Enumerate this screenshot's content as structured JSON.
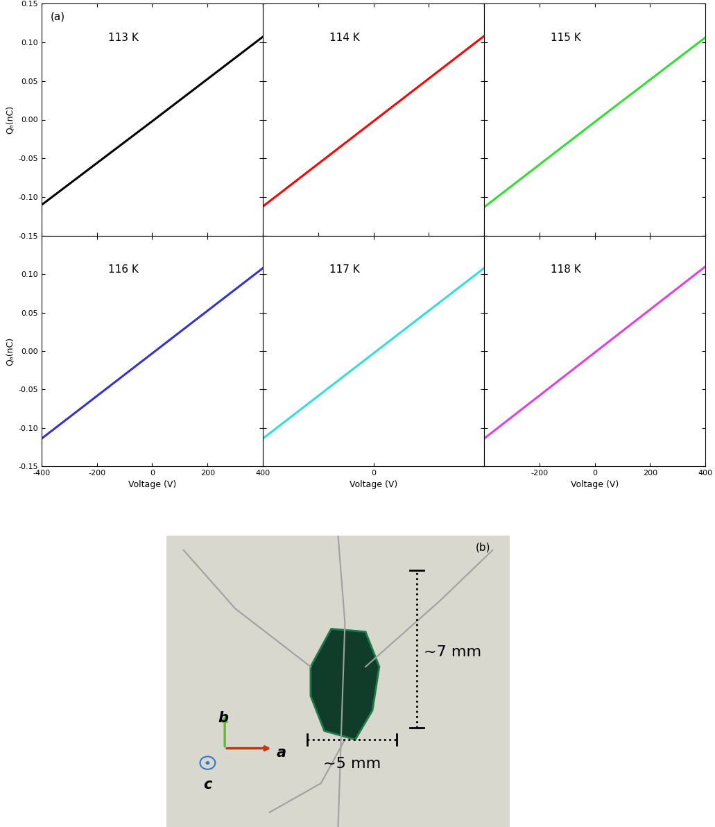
{
  "chart_data": [
    {
      "type": "line",
      "panel_label": "(a)",
      "label": "113 K",
      "ylabel": "Qₐ(nC)",
      "xlim": [
        -400,
        400
      ],
      "ylim": [
        -0.15,
        0.15
      ],
      "xticks": [
        -400,
        -200,
        0,
        200,
        400
      ],
      "yticks": [
        {
          "value": -0.15,
          "label": "-0.15"
        },
        {
          "value": -0.1,
          "label": "-0.10"
        },
        {
          "value": -0.05,
          "label": "-0.05"
        },
        {
          "value": 0,
          "label": "0.00"
        },
        {
          "value": 0.05,
          "label": "0.05"
        },
        {
          "value": 0.1,
          "label": "0.10"
        },
        {
          "value": 0.15,
          "label": "0.15"
        }
      ],
      "tick_labels": "y",
      "series": [
        {
          "x": [
            -400,
            0,
            400
          ],
          "values": [
            -0.11,
            -0.002,
            0.107
          ],
          "color": "#000000"
        }
      ]
    },
    {
      "type": "line",
      "label": "114 K",
      "xlim": [
        -400,
        400
      ],
      "ylim": [
        -0.15,
        0.15
      ],
      "xticks": [
        -400,
        -200,
        0,
        200,
        400
      ],
      "yticks": [
        -0.15,
        -0.1,
        -0.05,
        0,
        0.05,
        0.1,
        0.15
      ],
      "tick_labels": false,
      "series": [
        {
          "x": [
            -400,
            0,
            400
          ],
          "values": [
            -0.112,
            -0.002,
            0.108
          ],
          "color": "#ff0000"
        }
      ]
    },
    {
      "type": "line",
      "label": "115 K",
      "xlim": [
        -400,
        400
      ],
      "ylim": [
        -0.15,
        0.15
      ],
      "xticks": [
        -400,
        -200,
        0,
        200,
        400
      ],
      "yticks": [
        -0.15,
        -0.1,
        -0.05,
        0,
        0.05,
        0.1,
        0.15
      ],
      "tick_labels": false,
      "series": [
        {
          "x": [
            -400,
            0,
            400
          ],
          "values": [
            -0.113,
            -0.003,
            0.106
          ],
          "color": "#33dd33"
        }
      ]
    },
    {
      "type": "line",
      "label": "116 K",
      "xlabel": "Voltage (V)",
      "ylabel": "Qₐ(nC)",
      "xlim": [
        -400,
        400
      ],
      "ylim": [
        -0.15,
        0.15
      ],
      "xticks": [
        -400,
        -200,
        0,
        200,
        400
      ],
      "yticks": [
        {
          "value": -0.15,
          "label": "-0.15"
        },
        {
          "value": -0.1,
          "label": "-0.10"
        },
        {
          "value": -0.05,
          "label": "-0.05"
        },
        {
          "value": 0,
          "label": "0.00"
        },
        {
          "value": 0.05,
          "label": "0.05"
        },
        {
          "value": 0.1,
          "label": "0.10"
        }
      ],
      "tick_labels": true,
      "series": [
        {
          "x": [
            -400,
            0,
            400
          ],
          "values": [
            -0.114,
            -0.003,
            0.108
          ],
          "color": "#3333cc"
        }
      ]
    },
    {
      "type": "line",
      "label": "117 K",
      "xlabel": "Voltage (V)",
      "xlim": [
        -400,
        400
      ],
      "ylim": [
        -0.15,
        0.15
      ],
      "xticks": [
        0
      ],
      "yticks": [
        -0.15,
        -0.1,
        -0.05,
        0,
        0.05,
        0.1,
        0.15
      ],
      "tick_labels": "x",
      "series": [
        {
          "x": [
            -400,
            0,
            400
          ],
          "values": [
            -0.114,
            -0.003,
            0.108
          ],
          "color": "#33dddd"
        }
      ]
    },
    {
      "type": "line",
      "label": "118 K",
      "xlabel": "Voltage (V)",
      "xlim": [
        -400,
        400
      ],
      "ylim": [
        -0.15,
        0.15
      ],
      "xticks": [
        -200,
        0,
        200,
        400
      ],
      "yticks": [
        -0.15,
        -0.1,
        -0.05,
        0,
        0.05,
        0.1,
        0.15
      ],
      "tick_labels": "x",
      "series": [
        {
          "x": [
            -400,
            0,
            400
          ],
          "values": [
            -0.114,
            -0.002,
            0.11
          ],
          "color": "#e040e0"
        }
      ]
    }
  ],
  "panel_b": {
    "panel_label": "(b)",
    "height": "~7 mm",
    "width": "~5 mm",
    "axes": {
      "a": "a",
      "b": "b",
      "c": "c"
    }
  }
}
